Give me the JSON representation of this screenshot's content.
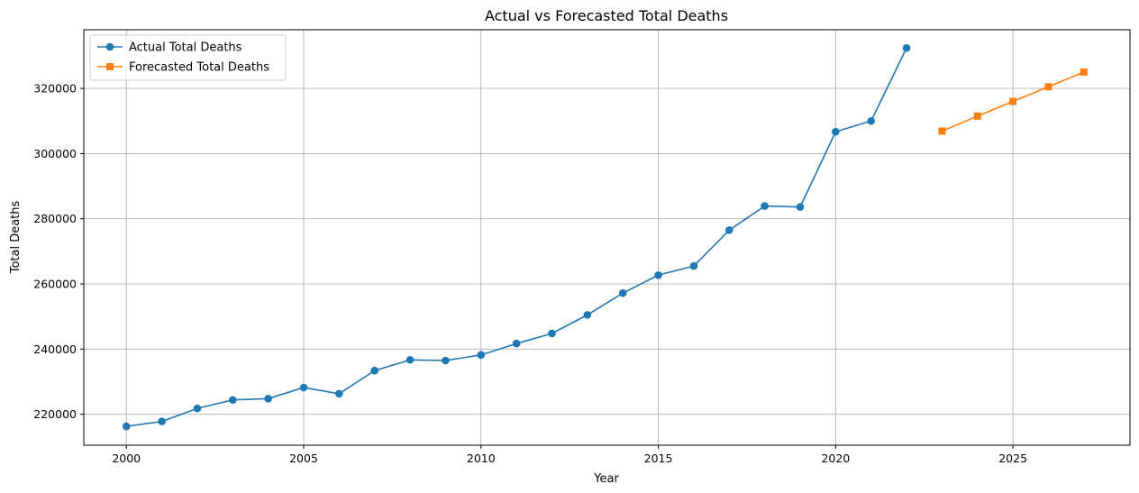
{
  "chart_data": {
    "type": "line",
    "title": "Actual vs Forecasted Total Deaths",
    "xlabel": "Year",
    "ylabel": "Total Deaths",
    "xlim": [
      1998.8,
      2028.3
    ],
    "ylim": [
      210500,
      338000
    ],
    "xticks": [
      2000,
      2005,
      2010,
      2015,
      2020,
      2025
    ],
    "yticks": [
      220000,
      240000,
      260000,
      280000,
      300000,
      320000
    ],
    "grid": true,
    "legend_position": "top-left",
    "series": [
      {
        "name": "Actual Total Deaths",
        "color": "#1f77b4",
        "marker": "circle",
        "x": [
          2000,
          2001,
          2002,
          2003,
          2004,
          2005,
          2006,
          2007,
          2008,
          2009,
          2010,
          2011,
          2012,
          2013,
          2014,
          2015,
          2016,
          2017,
          2018,
          2019,
          2020,
          2021,
          2022
        ],
        "y": [
          216300,
          217800,
          221800,
          224400,
          224800,
          228200,
          226300,
          233400,
          236700,
          236500,
          238200,
          241700,
          244800,
          250500,
          257200,
          262700,
          265500,
          276500,
          283900,
          283600,
          306700,
          310000,
          332400
        ]
      },
      {
        "name": "Forecasted Total Deaths",
        "color": "#ff7f0e",
        "marker": "square",
        "x": [
          2023,
          2024,
          2025,
          2026,
          2027
        ],
        "y": [
          306900,
          311500,
          316000,
          320500,
          325000
        ]
      }
    ]
  }
}
